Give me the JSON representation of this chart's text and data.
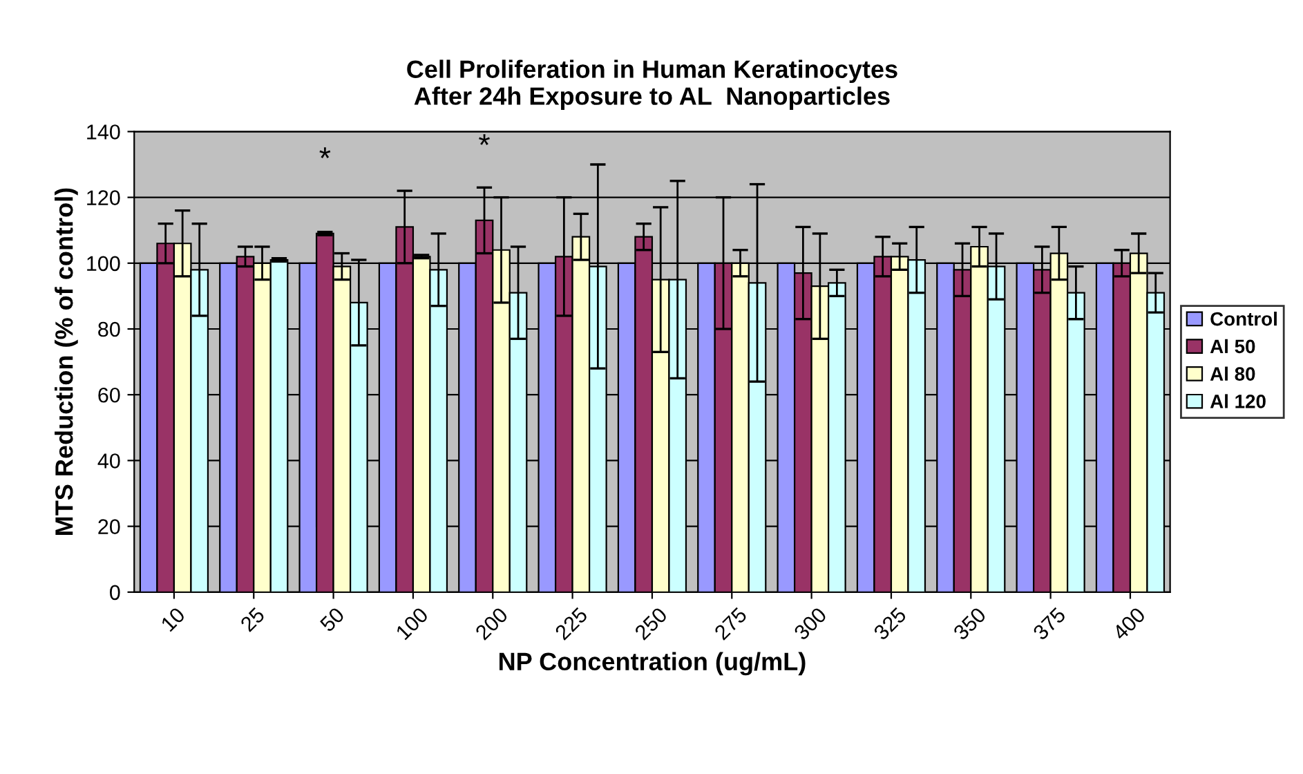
{
  "chart_data": {
    "type": "bar",
    "title": "Cell Proliferation in Human Keratinocytes\nAfter 24h Exposure to AL  Nanoparticles",
    "xlabel": "NP Concentration (ug/mL)",
    "ylabel": "MTS Reduction (% of control)",
    "categories": [
      "10",
      "25",
      "50",
      "100",
      "200",
      "225",
      "250",
      "275",
      "300",
      "325",
      "350",
      "375",
      "400"
    ],
    "series": [
      {
        "name": "Control",
        "color": "#9999ff",
        "values": [
          100,
          100,
          100,
          100,
          100,
          100,
          100,
          100,
          100,
          100,
          100,
          100,
          100
        ]
      },
      {
        "name": "Al 50",
        "color": "#993366",
        "values": [
          106,
          102,
          109,
          111,
          113,
          102,
          108,
          100,
          97,
          102,
          98,
          98,
          100
        ],
        "errors": [
          6,
          3,
          0.5,
          11,
          10,
          18,
          4,
          20,
          14,
          6,
          8,
          7,
          4
        ]
      },
      {
        "name": "Al 80",
        "color": "#ffffcc",
        "values": [
          106,
          100,
          99,
          102,
          104,
          108,
          95,
          100,
          93,
          102,
          105,
          103,
          103
        ],
        "errors": [
          10,
          5,
          4,
          0.5,
          16,
          7,
          22,
          4,
          16,
          4,
          6,
          8,
          6
        ]
      },
      {
        "name": "Al 120",
        "color": "#ccffff",
        "values": [
          98,
          101,
          88,
          98,
          91,
          99,
          95,
          94,
          94,
          101,
          99,
          91,
          91
        ],
        "errors": [
          14,
          0.5,
          13,
          11,
          14,
          31,
          30,
          30,
          4,
          10,
          10,
          8,
          6
        ]
      }
    ],
    "annotations": [
      {
        "text": "*",
        "x": "50",
        "y": 109
      },
      {
        "text": "*",
        "x": "200",
        "y": 113
      }
    ],
    "ylim": [
      0,
      140
    ],
    "yticks": [
      0,
      20,
      40,
      60,
      80,
      100,
      120,
      140
    ],
    "grid": "y",
    "legend": "right"
  }
}
